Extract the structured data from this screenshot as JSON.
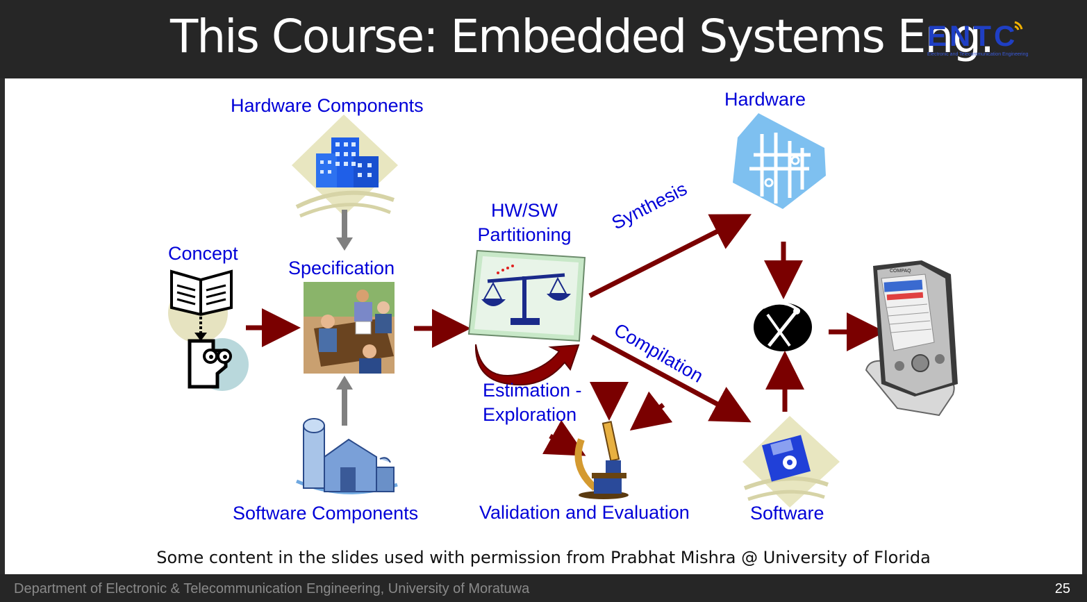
{
  "slide": {
    "title": "This Course: Embedded Systems Eng.",
    "logo_text": "ENTC",
    "logo_subtext": "Electronic and Telecommunication Engineering",
    "page_number": "25",
    "footer": "Department of Electronic & Telecommunication Engineering, University of Moratuwa",
    "credit": "Some content in the slides used with permission from Prabhat Mishra @ University of Florida"
  },
  "labels": {
    "hardware_components": "Hardware Components",
    "concept": "Concept",
    "specification": "Specification",
    "software_components": "Software Components",
    "hwsw_line1": "HW/SW",
    "hwsw_line2": "Partitioning",
    "estimation_line1": "Estimation -",
    "estimation_line2": "Exploration",
    "validation": "Validation and Evaluation",
    "synthesis": "Synthesis",
    "compilation": "Compilation",
    "hardware": "Hardware",
    "software": "Software"
  },
  "colors": {
    "label_blue": "#0000d8",
    "arrow_red": "#7a0000",
    "arrow_gray": "#808080"
  },
  "icons": [
    "building-icon",
    "book-icon",
    "thinking-face-icon",
    "meeting-icon",
    "barn-silo-icon",
    "scales-icon",
    "curved-arrow-icon",
    "microscope-icon",
    "circuit-chip-icon",
    "tools-icon",
    "floppy-disk-icon",
    "pda-device-icon"
  ]
}
